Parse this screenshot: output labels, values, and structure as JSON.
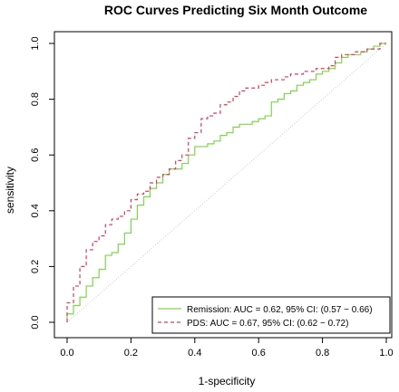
{
  "chart_data": {
    "type": "line",
    "title": "ROC Curves Predicting Six Month Outcome",
    "xlabel": "1-specificity",
    "ylabel": "sensitivity",
    "xlim": [
      0,
      1
    ],
    "ylim": [
      0,
      1
    ],
    "x_ticks": [
      "0.0",
      "0.2",
      "0.4",
      "0.6",
      "0.8",
      "1.0"
    ],
    "y_ticks": [
      "0.0",
      "0.2",
      "0.4",
      "0.6",
      "0.8",
      "1.0"
    ],
    "grid": false,
    "reference_line": {
      "from": [
        0,
        0
      ],
      "to": [
        1,
        1
      ],
      "color": "#c8c8c8",
      "style": "dotted"
    },
    "legend_position": "bottom-right",
    "series": [
      {
        "name": "Remission:  AUC = 0.62, 95% CI: (0.57 − 0.66)",
        "color": "#7fd64a",
        "style": "solid",
        "x": [
          0.0,
          0.02,
          0.04,
          0.06,
          0.08,
          0.1,
          0.12,
          0.14,
          0.16,
          0.18,
          0.2,
          0.22,
          0.24,
          0.26,
          0.28,
          0.3,
          0.32,
          0.34,
          0.36,
          0.38,
          0.4,
          0.42,
          0.44,
          0.46,
          0.48,
          0.5,
          0.52,
          0.54,
          0.56,
          0.58,
          0.6,
          0.62,
          0.64,
          0.66,
          0.68,
          0.7,
          0.72,
          0.74,
          0.76,
          0.78,
          0.8,
          0.82,
          0.84,
          0.86,
          0.88,
          0.9,
          0.92,
          0.94,
          0.96,
          0.98,
          1.0
        ],
        "y": [
          0.0,
          0.03,
          0.06,
          0.09,
          0.13,
          0.16,
          0.19,
          0.24,
          0.25,
          0.28,
          0.32,
          0.37,
          0.42,
          0.45,
          0.48,
          0.5,
          0.53,
          0.55,
          0.55,
          0.57,
          0.6,
          0.63,
          0.63,
          0.64,
          0.65,
          0.67,
          0.68,
          0.7,
          0.71,
          0.71,
          0.72,
          0.73,
          0.74,
          0.79,
          0.8,
          0.82,
          0.83,
          0.85,
          0.86,
          0.87,
          0.89,
          0.9,
          0.91,
          0.93,
          0.95,
          0.96,
          0.96,
          0.97,
          0.98,
          0.99,
          1.0
        ]
      },
      {
        "name": "PDS:  AUC = 0.67, 95% CI: (0.62 − 0.72)",
        "color": "#e03a5a",
        "style": "dashed",
        "x": [
          0.0,
          0.02,
          0.04,
          0.06,
          0.08,
          0.1,
          0.12,
          0.14,
          0.16,
          0.18,
          0.2,
          0.22,
          0.24,
          0.26,
          0.28,
          0.3,
          0.32,
          0.34,
          0.36,
          0.38,
          0.4,
          0.42,
          0.44,
          0.46,
          0.48,
          0.5,
          0.52,
          0.54,
          0.56,
          0.58,
          0.6,
          0.62,
          0.64,
          0.66,
          0.68,
          0.7,
          0.72,
          0.74,
          0.76,
          0.78,
          0.8,
          0.82,
          0.84,
          0.86,
          0.88,
          0.9,
          0.92,
          0.94,
          0.96,
          0.98,
          1.0
        ],
        "y": [
          0.0,
          0.07,
          0.13,
          0.2,
          0.26,
          0.29,
          0.31,
          0.35,
          0.37,
          0.38,
          0.4,
          0.44,
          0.46,
          0.47,
          0.5,
          0.52,
          0.53,
          0.55,
          0.58,
          0.6,
          0.66,
          0.68,
          0.73,
          0.74,
          0.75,
          0.78,
          0.79,
          0.81,
          0.83,
          0.84,
          0.84,
          0.85,
          0.86,
          0.87,
          0.87,
          0.88,
          0.89,
          0.89,
          0.9,
          0.9,
          0.91,
          0.91,
          0.92,
          0.95,
          0.96,
          0.96,
          0.97,
          0.97,
          0.98,
          0.98,
          1.0
        ]
      }
    ]
  }
}
